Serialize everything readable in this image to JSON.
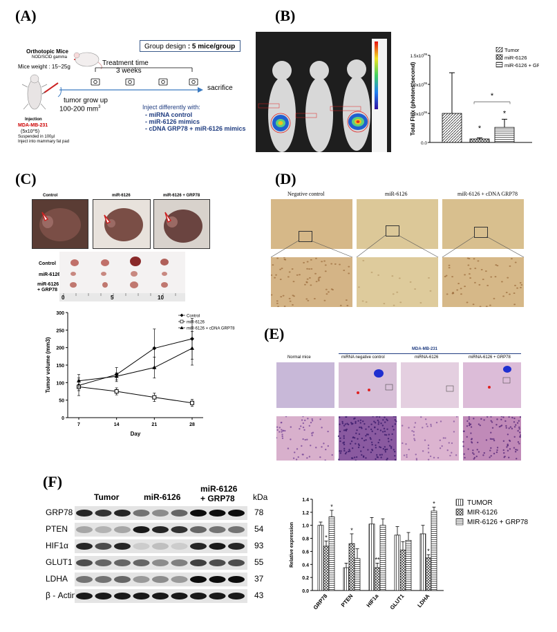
{
  "panels": {
    "A": "(A)",
    "B": "(B)",
    "C": "(C)",
    "D": "(D)",
    "E": "(E)",
    "F": "(F)"
  },
  "panelA": {
    "group_design_label": "Group design",
    "group_design_value": ": 5 mice/group",
    "orthotopic_title": "Orthotopic Mice",
    "orthotopic_strain": "NOD/SCID gamma",
    "mice_weight": "Mice weight : 15~25g",
    "treatment_time": "Treatment time",
    "treatment_weeks": "3 weeks",
    "sacrifice": "sacrifice",
    "injection": "Injection",
    "tumor_grow_1": "tumor grow up",
    "tumor_grow_2": "100-200 mm",
    "tumor_grow_sup": "3",
    "cell_line": "MDA-MB-231",
    "cell_count": "(5x10^5)",
    "suspended": "Suspended in 100µl",
    "inject_site": "Inject into mammary fat pad",
    "inject_header": "Inject differently with:",
    "inject_items": [
      "- miRNA control",
      "- miR-6126 mimics",
      "- cDNA GRP78 + miR-6126 mimics"
    ]
  },
  "panelB": {
    "legend": [
      "Tumor",
      "miR-6126",
      "miR-6126 + GRP78"
    ],
    "ylabel": "Total Flux (photons/second)",
    "yticks": [
      "0.0",
      "5.0x10",
      "1.0x10",
      "1.5x10"
    ],
    "ytick_exp": "09",
    "star": "*"
  },
  "panelC": {
    "photo_labels": [
      "Control",
      "miR-6126",
      "miR-6126 + GRP78"
    ],
    "row_labels": [
      "Control",
      "miR-6126",
      "miR-6126",
      "+ GRP78"
    ],
    "ruler_marks": [
      "0",
      "5",
      "10"
    ],
    "ylabel": "Tumor volume (mm3)",
    "xlabel": "Day",
    "legend": [
      "Control",
      "miR-6126",
      "miR-6126 + cDNA GRP78"
    ]
  },
  "panelD": {
    "labels": [
      "Negative control",
      "miR-6126",
      "miR-6126 + cDNA GRP78"
    ]
  },
  "panelE": {
    "header": "MDA-MB-231",
    "labels": [
      "Normal mice",
      "miRNA negative control",
      "miRNA-6126",
      "miRNA-6126 + GRP78"
    ]
  },
  "panelF": {
    "groups": [
      "Tumor",
      "miR-6126",
      "miR-6126",
      "+ GRP78"
    ],
    "kda_label": "kDa",
    "proteins": [
      "GRP78",
      "PTEN",
      "HIF1α",
      "GLUT1",
      "LDHA",
      "β - Actin"
    ],
    "kda": [
      "78",
      "54",
      "93",
      "55",
      "37",
      "43"
    ],
    "bar_legend": [
      "TUMOR",
      "MIR-6126",
      "MIR-6126 + GRP78"
    ],
    "bar_ylabel": "Relative expression"
  },
  "chart_data": [
    {
      "type": "bar",
      "categories": [
        ""
      ],
      "series": [
        {
          "name": "Tumor",
          "values": [
            0.5
          ],
          "err": [
            0.7
          ]
        },
        {
          "name": "miR-6126",
          "values": [
            0.06
          ],
          "err": [
            0.02
          ]
        },
        {
          "name": "miR-6126 + GRP78",
          "values": [
            0.26
          ],
          "err": [
            0.14
          ]
        }
      ],
      "ylabel": "Total Flux (photons/second)",
      "ylim": [
        0,
        1.5
      ],
      "yticks": [
        0,
        0.5,
        1.0,
        1.5
      ],
      "annotations": [
        "*",
        "*",
        "*"
      ]
    },
    {
      "type": "line",
      "x": [
        7,
        14,
        21,
        28
      ],
      "series": [
        {
          "name": "Control",
          "values": [
            92,
            123,
            198,
            225
          ],
          "err": [
            15,
            20,
            55,
            58
          ]
        },
        {
          "name": "miR-6126",
          "values": [
            88,
            75,
            58,
            42
          ],
          "err": [
            25,
            10,
            12,
            10
          ]
        },
        {
          "name": "miR-6126 + cDNA GRP78",
          "values": [
            105,
            118,
            143,
            198
          ],
          "err": [
            18,
            10,
            30,
            48
          ]
        }
      ],
      "xlabel": "Day",
      "ylabel": "Tumor volume (mm3)",
      "ylim": [
        0,
        300
      ],
      "yticks": [
        0,
        50,
        100,
        150,
        200,
        250,
        300
      ],
      "xticks": [
        7,
        14,
        21,
        28
      ]
    },
    {
      "type": "bar",
      "categories": [
        "GRP78",
        "PTEN",
        "HIF1a",
        "GLUT1",
        "LDHA"
      ],
      "series": [
        {
          "name": "TUMOR",
          "values": [
            1.0,
            0.35,
            1.02,
            0.85,
            0.87
          ],
          "err": [
            0.05,
            0.07,
            0.1,
            0.13,
            0.13
          ]
        },
        {
          "name": "MIR-6126",
          "values": [
            0.68,
            0.72,
            0.35,
            0.62,
            0.5
          ],
          "err": [
            0.08,
            0.15,
            0.07,
            0.13,
            0.05
          ]
        },
        {
          "name": "MIR-6126 + GRP78",
          "values": [
            1.13,
            0.49,
            1.0,
            0.77,
            1.22
          ],
          "err": [
            0.1,
            0.15,
            0.1,
            0.12,
            0.06
          ]
        }
      ],
      "annotations": [
        [
          "",
          "*",
          "*"
        ],
        [
          "",
          "*",
          ""
        ],
        [
          "",
          "**",
          ""
        ],
        [
          "",
          "",
          ""
        ],
        [
          "",
          "*",
          "*"
        ]
      ],
      "ylabel": "Relative expression",
      "ylim": [
        0,
        1.4
      ],
      "yticks": [
        0.0,
        0.2,
        0.4,
        0.6,
        0.8,
        1.0,
        1.2,
        1.4
      ]
    }
  ]
}
